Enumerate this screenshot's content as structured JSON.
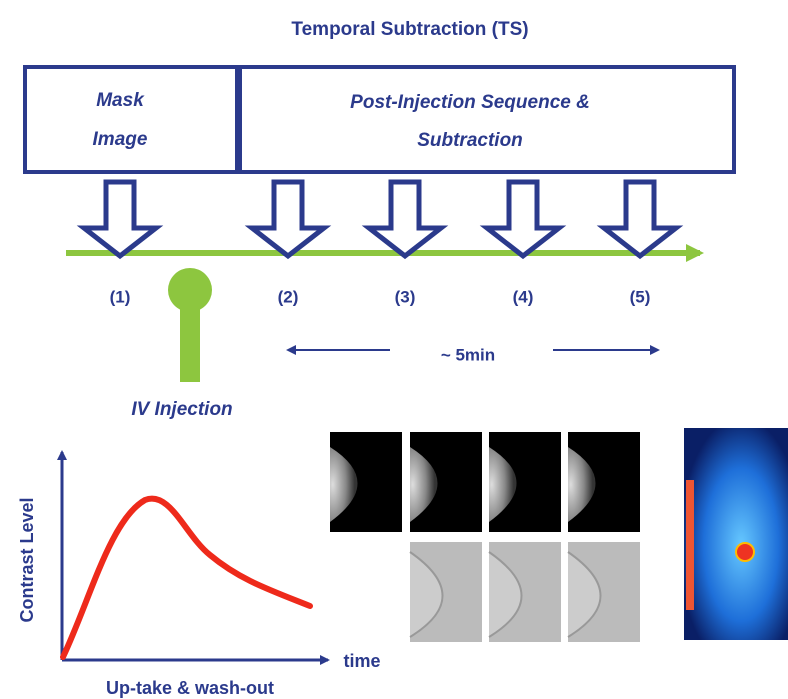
{
  "title": "Temporal Subtraction (TS)",
  "boxes": [
    {
      "lines": [
        "Mask",
        "Image"
      ]
    },
    {
      "lines": [
        "Post-Injection Sequence &",
        "Subtraction"
      ]
    }
  ],
  "timepoints": [
    "(1)",
    "(2)",
    "(3)",
    "(4)",
    "(5)"
  ],
  "duration": "~ 5min",
  "injection": "IV Injection",
  "graph": {
    "y_label": "Contrast Level",
    "x_label": "time",
    "caption": "Up-take & wash-out"
  }
}
